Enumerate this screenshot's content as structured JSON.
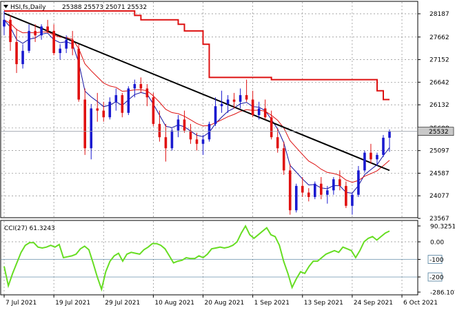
{
  "header": {
    "symbol_label": "HSI,fs,Daily",
    "ohlc_label": "25388 25573 25071 25532"
  },
  "indicator": {
    "label": "CCI(27) 61.3243",
    "levels": [
      90.3251,
      0.0,
      -100,
      -200,
      -286.1076
    ],
    "level_labels": [
      "90.3251",
      "0.00",
      "-100",
      "-200",
      "-286.1076"
    ],
    "cci": [
      -140,
      -250,
      -180,
      -120,
      -60,
      -20,
      -5,
      -5,
      -30,
      -35,
      -30,
      -20,
      -30,
      -15,
      -90,
      -85,
      -80,
      -70,
      -40,
      -25,
      -45,
      -120,
      -200,
      -270,
      -170,
      -110,
      -80,
      -65,
      -110,
      -70,
      -60,
      -65,
      -70,
      -45,
      -30,
      -10,
      -10,
      -20,
      -40,
      -80,
      -120,
      -110,
      -105,
      -90,
      -95,
      -95,
      -80,
      -90,
      -70,
      -40,
      -35,
      -30,
      -35,
      -30,
      -20,
      0,
      50,
      90,
      40,
      20,
      40,
      60,
      80,
      40,
      30,
      -20,
      -110,
      -180,
      -260,
      -210,
      -170,
      -180,
      -140,
      -110,
      -110,
      -90,
      -70,
      -60,
      -50,
      -60,
      -30,
      -40,
      -50,
      -90,
      -50,
      0,
      20,
      30,
      10,
      30,
      50,
      61.3
    ]
  },
  "chart_data": {
    "type": "candlestick",
    "symbol": "HSI,fs",
    "timeframe": "Daily",
    "ylim": [
      23567,
      28400
    ],
    "y_ticks": [
      28187,
      27662,
      27152,
      26642,
      26132,
      25608,
      25097,
      24587,
      24077,
      23567
    ],
    "current_price": 25532,
    "x_tick_labels": [
      "7 Jul 2021",
      "19 Jul 2021",
      "29 Jul 2021",
      "10 Aug 2021",
      "20 Aug 2021",
      "1 Sep 2021",
      "13 Sep 2021",
      "24 Sep 2021",
      "6 Oct 2021"
    ],
    "x_tick_index": [
      0,
      8,
      16,
      24,
      32,
      40,
      48,
      56,
      64
    ],
    "candles": [
      [
        27900,
        28250,
        27700,
        28050
      ],
      [
        28050,
        28150,
        27350,
        27550
      ],
      [
        27550,
        27850,
        26850,
        27050
      ],
      [
        27050,
        27500,
        26950,
        27350
      ],
      [
        27350,
        27950,
        27300,
        27800
      ],
      [
        27800,
        27950,
        27550,
        27700
      ],
      [
        27700,
        27950,
        27600,
        27900
      ],
      [
        27900,
        28050,
        27750,
        27800
      ],
      [
        27800,
        27950,
        27250,
        27300
      ],
      [
        27300,
        27500,
        27150,
        27400
      ],
      [
        27400,
        27700,
        27300,
        27600
      ],
      [
        27600,
        27800,
        27250,
        27400
      ],
      [
        27400,
        27500,
        26200,
        26250
      ],
      [
        26250,
        26500,
        25000,
        25150
      ],
      [
        25150,
        26150,
        24900,
        26050
      ],
      [
        26050,
        26400,
        25750,
        26000
      ],
      [
        26000,
        26200,
        25750,
        25850
      ],
      [
        25850,
        26300,
        25800,
        26200
      ],
      [
        26200,
        26500,
        26000,
        26350
      ],
      [
        26350,
        26400,
        25850,
        25950
      ],
      [
        25950,
        26550,
        25900,
        26500
      ],
      [
        26500,
        26700,
        26300,
        26600
      ],
      [
        26600,
        26750,
        26400,
        26500
      ],
      [
        26500,
        26600,
        26100,
        26300
      ],
      [
        26300,
        26400,
        25650,
        25700
      ],
      [
        25700,
        26000,
        25300,
        25400
      ],
      [
        25400,
        25700,
        24850,
        25150
      ],
      [
        25150,
        25600,
        25100,
        25550
      ],
      [
        25550,
        25900,
        25400,
        25800
      ],
      [
        25800,
        26000,
        25500,
        25550
      ],
      [
        25550,
        25700,
        25250,
        25350
      ],
      [
        25350,
        25500,
        25100,
        25250
      ],
      [
        25250,
        25450,
        25000,
        25350
      ],
      [
        25350,
        25750,
        25300,
        25700
      ],
      [
        25700,
        26300,
        25650,
        26100
      ],
      [
        26100,
        26450,
        25950,
        26150
      ],
      [
        26150,
        26350,
        25950,
        26250
      ],
      [
        26250,
        26400,
        26050,
        26200
      ],
      [
        26200,
        26500,
        26050,
        26350
      ],
      [
        26350,
        26700,
        26200,
        26250
      ],
      [
        26250,
        26450,
        25850,
        25900
      ],
      [
        25900,
        26200,
        25800,
        26050
      ],
      [
        26050,
        26250,
        25800,
        25850
      ],
      [
        25850,
        26000,
        25350,
        25400
      ],
      [
        25400,
        25600,
        25050,
        25150
      ],
      [
        25150,
        25300,
        24550,
        24650
      ],
      [
        24650,
        24800,
        23650,
        23750
      ],
      [
        23750,
        24350,
        23700,
        24300
      ],
      [
        24300,
        24500,
        24050,
        24150
      ],
      [
        24150,
        24250,
        23950,
        24050
      ],
      [
        24050,
        24400,
        24000,
        24350
      ],
      [
        24350,
        24500,
        24000,
        24100
      ],
      [
        24100,
        24300,
        23900,
        24200
      ],
      [
        24200,
        24500,
        24100,
        24450
      ],
      [
        24450,
        24650,
        24200,
        24300
      ],
      [
        24300,
        24400,
        23800,
        23850
      ],
      [
        23850,
        24150,
        23650,
        24100
      ],
      [
        24100,
        24750,
        24050,
        24650
      ],
      [
        24650,
        25100,
        24600,
        25050
      ],
      [
        25050,
        25250,
        24800,
        24900
      ],
      [
        24900,
        25050,
        24750,
        25000
      ],
      [
        25000,
        25450,
        24950,
        25388
      ],
      [
        25388,
        25573,
        25071,
        25532
      ]
    ],
    "trendline": [
      [
        0,
        28200
      ],
      [
        62,
        24650
      ]
    ],
    "current_price_line": 25532
  }
}
